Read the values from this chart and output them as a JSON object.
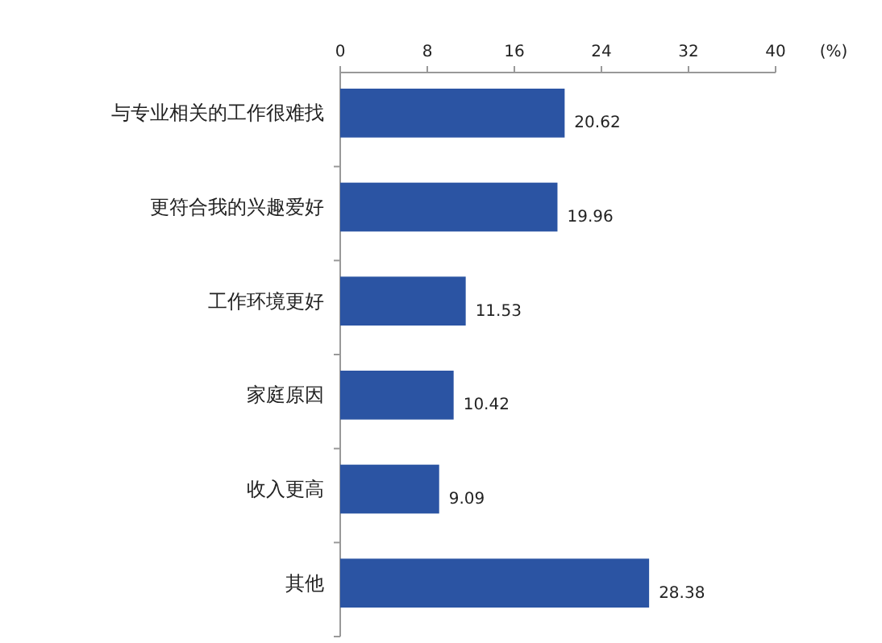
{
  "chart_data": {
    "type": "bar",
    "orientation": "horizontal",
    "categories": [
      "与专业相关的工作很难找",
      "更符合我的兴趣爱好",
      "工作环境更好",
      "家庭原因",
      "收入更高",
      "其他"
    ],
    "values": [
      20.62,
      19.96,
      11.53,
      10.42,
      9.09,
      28.38
    ],
    "color": "#2b54a3",
    "xlim": [
      0,
      40
    ],
    "xticks": [
      0,
      8,
      16,
      24,
      32,
      40
    ],
    "xlabel": "(%)",
    "data_labels": true
  }
}
